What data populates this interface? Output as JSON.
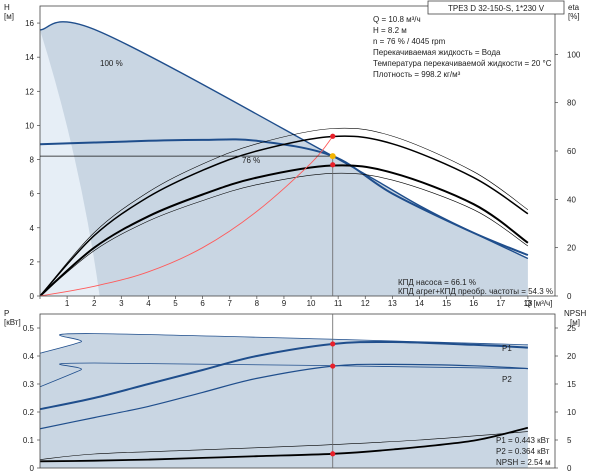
{
  "chart_data": [
    {
      "type": "line",
      "title": "TPE3 D 32-150-S, 1*230 V",
      "xlabel": "Q [м³/ч]",
      "ylabel_left": "H [м]",
      "ylabel_right": "eta [%]",
      "xlim": [
        0,
        19
      ],
      "ylim_left": [
        0,
        17
      ],
      "ylim_right": [
        0,
        120
      ],
      "xticks": [
        "0",
        "1",
        "2",
        "3",
        "4",
        "5",
        "6",
        "7",
        "8",
        "9",
        "10",
        "11",
        "12",
        "13",
        "14",
        "15",
        "16",
        "17",
        "18"
      ],
      "yticks_left": [
        "0",
        "2",
        "4",
        "6",
        "8",
        "10",
        "12",
        "14",
        "16"
      ],
      "yticks_right": [
        "0",
        "20",
        "40",
        "60",
        "80",
        "100"
      ],
      "grid": false,
      "max_curve_label": "100 %",
      "op_curve_label": "76 %",
      "series": [
        {
          "x": [
            0,
            2.2,
            10.8,
            14,
            16,
            18
          ],
          "y": [
            15.6,
            15.5,
            8.2,
            5.3,
            3.7,
            2.2
          ]
        },
        {
          "x": [
            0,
            2,
            4,
            6,
            8,
            10.8,
            13,
            16,
            18
          ],
          "y": [
            8.9,
            9.0,
            9.1,
            9.15,
            9.1,
            8.2,
            6.0,
            3.7,
            2.4
          ]
        },
        {
          "x": [
            0,
            2,
            4,
            6,
            8,
            10.8,
            13,
            16,
            18
          ],
          "y_eta": [
            0,
            25,
            41,
            52,
            60,
            66,
            63,
            49,
            34
          ]
        },
        {
          "x": [
            0,
            2,
            4,
            6,
            8,
            10.8,
            13,
            16,
            18
          ],
          "y_eta": [
            0,
            20,
            33,
            42,
            49,
            54,
            51,
            38,
            22
          ]
        },
        {
          "x": [
            0,
            2,
            4,
            6,
            8,
            10,
            10.8
          ],
          "y_eta": [
            0,
            4,
            10,
            20,
            35,
            55,
            66
          ]
        }
      ],
      "operating_point": {
        "x": 10.8,
        "h": 8.2,
        "eta_pump": 66.1,
        "eta_total": 54.3
      },
      "info_lines": [
        "Q = 10.8 м³/ч",
        "H = 8.2 м",
        "n = 76 % / 4045 rpm",
        "Перекачиваемая жидкость = Вода",
        "Температура перекачиваемой жидкости = 20 °C",
        "Плотность = 998.2 кг/м³"
      ],
      "eff_lines": [
        "КПД насоса = 66.1 %",
        "КПД агрег+КПД преобр. частоты = 54.3 %"
      ]
    },
    {
      "type": "line",
      "ylabel_left": "P [кВт]",
      "ylabel_right": "NPSH [м]",
      "xlim": [
        0,
        19
      ],
      "ylim_left": [
        0,
        0.55
      ],
      "ylim_right": [
        0,
        27.5
      ],
      "yticks_left": [
        "0",
        "0.1",
        "0.2",
        "0.3",
        "0.4",
        "0.5"
      ],
      "yticks_right": [
        "0",
        "5",
        "10",
        "15",
        "20",
        "25"
      ],
      "series": [
        {
          "name": "P1",
          "x": [
            0,
            2,
            4,
            6,
            8,
            10.8,
            13,
            16,
            18
          ],
          "y": [
            0.21,
            0.25,
            0.3,
            0.35,
            0.4,
            0.443,
            0.45,
            0.44,
            0.43
          ]
        },
        {
          "name": "P2",
          "x": [
            0,
            2,
            4,
            6,
            8,
            10.8,
            13,
            16,
            18
          ],
          "y": [
            0.14,
            0.18,
            0.22,
            0.27,
            0.32,
            0.364,
            0.37,
            0.365,
            0.355
          ]
        },
        {
          "x": [
            0,
            2,
            4,
            6,
            8,
            10.8,
            13,
            16,
            18
          ],
          "y_npsh": [
            1.2,
            1.3,
            1.5,
            1.8,
            2.1,
            2.54,
            3.3,
            4.9,
            7.2
          ]
        },
        {
          "x": [
            0,
            1.5,
            2,
            18
          ],
          "y": [
            0.41,
            0.45,
            0.48,
            0.44
          ]
        },
        {
          "x": [
            0,
            1.5,
            2,
            18
          ],
          "y": [
            0.29,
            0.35,
            0.375,
            0.355
          ]
        },
        {
          "x": [
            0,
            2,
            6,
            10,
            14,
            18
          ],
          "y": [
            0.03,
            0.05,
            0.065,
            0.08,
            0.1,
            0.13
          ]
        }
      ],
      "operating_point": {
        "x": 10.8,
        "p1": 0.443,
        "p2": 0.364,
        "npsh": 2.54
      },
      "info_lines": [
        "P1 = 0.443 кВт",
        "P2 = 0.364 кВт",
        "NPSH = 2.54 м"
      ]
    }
  ],
  "colors": {
    "envelope_fill": "#c9d6e3",
    "envelope_light": "#e6eef6",
    "curve_blue": "#1f4e8c",
    "curve_black": "#000000",
    "system_red": "#ff5a5a",
    "point_red": "#e8202a",
    "point_yellow": "#f4b400"
  }
}
